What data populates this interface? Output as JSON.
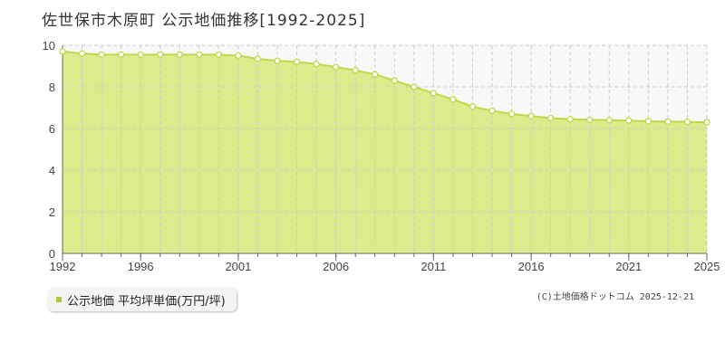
{
  "title": "佐世保市木原町 公示地価推移[1992-2025]",
  "legend": {
    "label": "公示地価 平均坪単価(万円/坪)"
  },
  "credit": "(C)土地価格ドットコム 2025-12-21",
  "colors": {
    "fill": "#dcec8c",
    "line": "#bcd94a",
    "marker": "#a8cc2e",
    "grid": "#cccccc"
  },
  "chart_data": {
    "type": "area",
    "title": "佐世保市木原町 公示地価推移[1992-2025]",
    "xlabel": "",
    "ylabel": "",
    "xlim": [
      1992,
      2025
    ],
    "ylim": [
      0,
      10
    ],
    "grid": true,
    "x_ticks": [
      "1992",
      "1996",
      "2001",
      "2006",
      "2011",
      "2016",
      "2021",
      "2025"
    ],
    "y_ticks": [
      "0",
      "2",
      "4",
      "6",
      "8",
      "10"
    ],
    "series": [
      {
        "name": "公示地価 平均坪単価(万円/坪)",
        "x": [
          1992,
          1993,
          1994,
          1995,
          1996,
          1997,
          1998,
          1999,
          2000,
          2001,
          2002,
          2003,
          2004,
          2005,
          2006,
          2007,
          2008,
          2009,
          2010,
          2011,
          2012,
          2013,
          2014,
          2015,
          2016,
          2017,
          2018,
          2019,
          2020,
          2021,
          2022,
          2023,
          2024,
          2025
        ],
        "values": [
          9.7,
          9.6,
          9.55,
          9.55,
          9.55,
          9.55,
          9.55,
          9.55,
          9.55,
          9.5,
          9.35,
          9.25,
          9.2,
          9.1,
          8.95,
          8.8,
          8.6,
          8.3,
          8.0,
          7.7,
          7.4,
          7.05,
          6.85,
          6.7,
          6.6,
          6.5,
          6.45,
          6.42,
          6.4,
          6.38,
          6.35,
          6.33,
          6.32,
          6.3
        ]
      }
    ]
  }
}
